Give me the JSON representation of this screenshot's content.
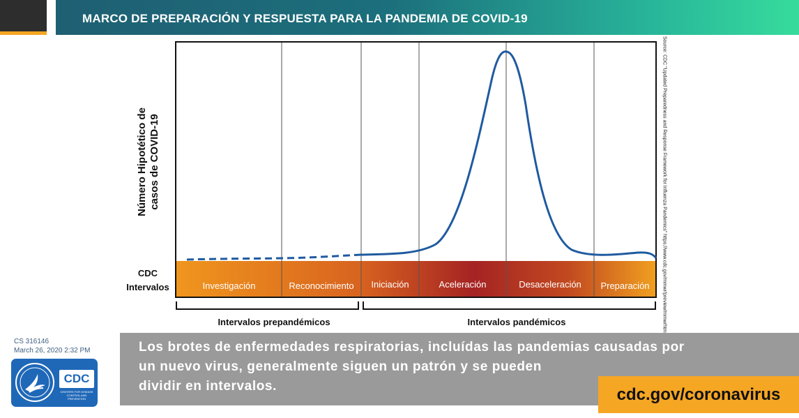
{
  "header": {
    "title": "MARCO DE PREPARACIÓN Y RESPUESTA PARA LA PANDEMIA DE COVID-19"
  },
  "colors": {
    "header_start": "#1f5f73",
    "header_end": "#37dc9c",
    "accent_orange": "#f5a623",
    "curve_blue": "#1f5aa0",
    "band_orange": "#f0961e",
    "band_red": "#a52323",
    "message_gray": "#9a9a9a",
    "cdc_blue": "#1f68b8"
  },
  "diagram": {
    "ylabel_line1": "Número Hipotético de",
    "ylabel_line2": "casos de COVID-19",
    "band_label_line1": "CDC",
    "band_label_line2": "Intervalos",
    "phases": [
      "Investigación",
      "Reconocimiento",
      "Iniciación",
      "Aceleración",
      "Desaceleración",
      "Preparación"
    ],
    "periods": [
      "Intervalos prepandémicos",
      "Intervalos pandémicos"
    ],
    "source": "Source: CDC \"Updated Preparedness and Response Framework for Influenza Pandemics\" https://www.cdc.gov/mmwr/preview/mmwrhtml/rr6306a1.htm",
    "curve_style": "dashed before the pandemic intervals, solid during them"
  },
  "footer": {
    "doc_id": "CS 316146",
    "doc_date": "March 26, 2020 2:32 PM",
    "logos": {
      "hhs_seal": "hhs-seal-icon",
      "cdc_text": "CDC",
      "cdc_subtext": "CENTERS FOR DISEASE CONTROL AND PREVENTION"
    },
    "message_line1": "Los brotes de enfermedades respiratorias, incluídas las pandemias causadas por",
    "message_line2": "un nuevo virus, generalmente siguen un patrón y se pueden",
    "message_line3": "dividir en intervalos.",
    "url": "cdc.gov/coronavirus"
  }
}
